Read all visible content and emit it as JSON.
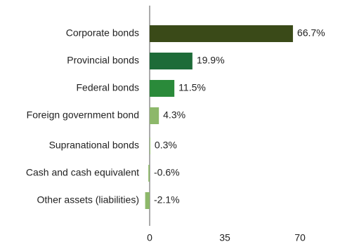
{
  "chart_data": {
    "type": "hbar",
    "categories": [
      "Corporate bonds",
      "Provincial bonds",
      "Federal bonds",
      "Foreign government bond",
      "Supranational bonds",
      "Cash and cash equivalent",
      "Other assets (liabilities)"
    ],
    "values": [
      66.7,
      19.9,
      11.5,
      4.3,
      0.3,
      -0.6,
      -2.1
    ],
    "value_labels": [
      "66.7%",
      "19.9%",
      "11.5%",
      "4.3%",
      "0.3%",
      "-0.6%",
      "-2.1%"
    ],
    "colors": [
      "#3a4a18",
      "#1d6b38",
      "#2a8a3a",
      "#8db86a",
      "#8db86a",
      "#8db86a",
      "#8db86a"
    ],
    "xlim": [
      0,
      70
    ],
    "xticks": [
      0,
      35,
      70
    ]
  }
}
